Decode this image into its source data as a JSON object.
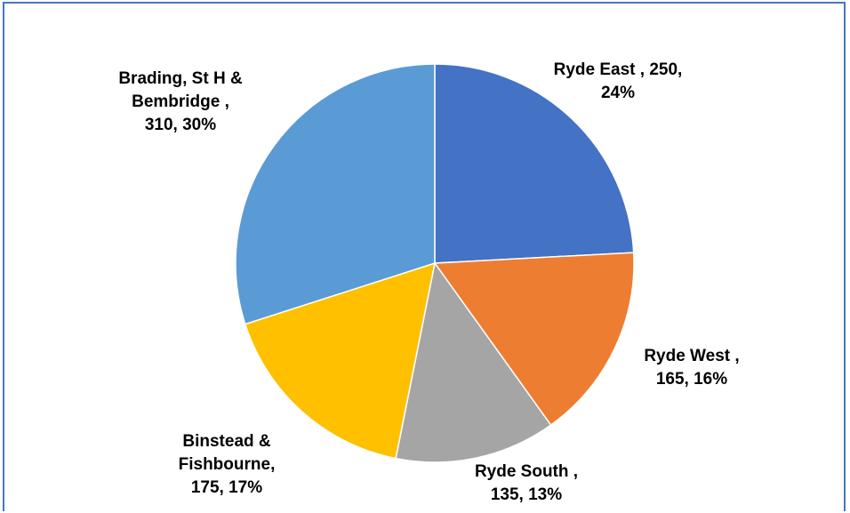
{
  "chart_data": {
    "type": "pie",
    "title": "",
    "start_angle_deg": 0,
    "direction": "clockwise",
    "slices": [
      {
        "name": "Ryde East",
        "value": 250,
        "percent": "24%",
        "color": "#4472c4",
        "label_lines": [
          "Ryde East , 250,",
          "24%"
        ]
      },
      {
        "name": "Ryde West",
        "value": 165,
        "percent": "16%",
        "color": "#ed7d31",
        "label_lines": [
          "Ryde West ,",
          "165, 16%"
        ]
      },
      {
        "name": "Ryde South",
        "value": 135,
        "percent": "13%",
        "color": "#a5a5a5",
        "label_lines": [
          "Ryde South ,",
          "135, 13%"
        ]
      },
      {
        "name": "Binstead & Fishbourne",
        "value": 175,
        "percent": "17%",
        "color": "#ffc000",
        "label_lines": [
          "Binstead &",
          "Fishbourne,",
          "175, 17%"
        ]
      },
      {
        "name": "Brading, St H & Bembridge",
        "value": 310,
        "percent": "30%",
        "color": "#5b9bd5",
        "label_lines": [
          "Brading, St H &",
          "Bembridge ,",
          "310, 30%"
        ]
      }
    ],
    "legend": "none",
    "border_color": "#4a76b8"
  }
}
